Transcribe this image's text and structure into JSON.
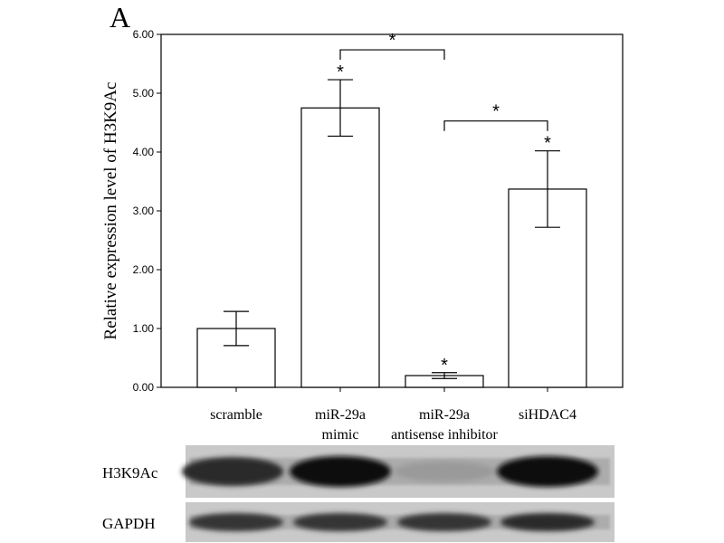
{
  "panel_label": "A",
  "chart_data": {
    "type": "bar",
    "ylabel": "Relative expression  level of  H3K9Ac",
    "ylim": [
      0,
      6
    ],
    "yticks": [
      "0.00",
      "1.00",
      "2.00",
      "3.00",
      "4.00",
      "5.00",
      "6.00"
    ],
    "categories": [
      [
        "scramble"
      ],
      [
        "miR-29a",
        "mimic"
      ],
      [
        "miR-29a",
        "antisense inhibitor"
      ],
      [
        "siHDAC4"
      ]
    ],
    "values": [
      1.0,
      4.75,
      0.2,
      3.37
    ],
    "error_low": [
      0.71,
      4.27,
      0.15,
      2.72
    ],
    "error_high": [
      1.29,
      5.23,
      0.25,
      4.02
    ],
    "bar_marks": [
      "",
      "*",
      "*",
      "*"
    ],
    "comparisons": [
      {
        "from": 1,
        "to": 2,
        "mark": "*"
      },
      {
        "from": 2,
        "to": 3,
        "mark": "*"
      }
    ],
    "grid": false,
    "legend": "none"
  },
  "blot": {
    "rows": [
      {
        "label": "H3K9Ac",
        "band_intensity": [
          0.85,
          1.0,
          0.25,
          1.0
        ]
      },
      {
        "label": "GAPDH",
        "band_intensity": [
          0.8,
          0.8,
          0.8,
          0.85
        ]
      }
    ]
  }
}
